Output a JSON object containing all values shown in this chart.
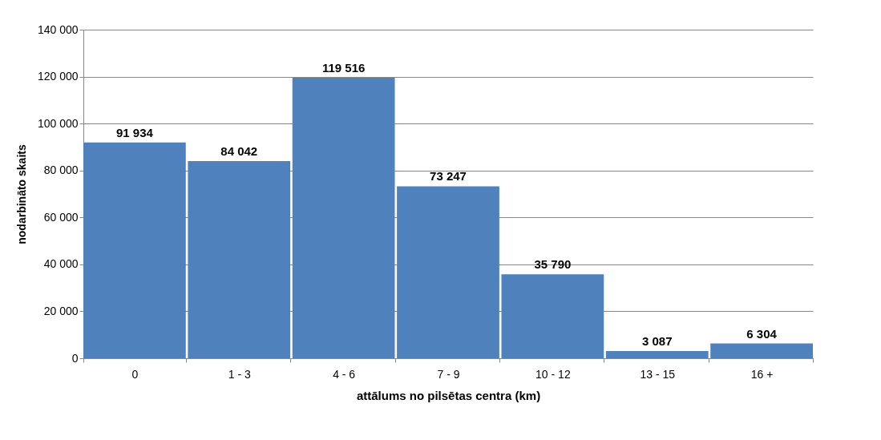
{
  "chart_data": {
    "type": "bar",
    "xlabel": "attālums no pilsētas centra (km)",
    "ylabel": "nodarbināto skaits",
    "categories": [
      "0",
      "1 - 3",
      "4 - 6",
      "7 - 9",
      "10 - 12",
      "13 - 15",
      "16 +"
    ],
    "values": [
      91934,
      84042,
      119516,
      73247,
      35790,
      3087,
      6304
    ],
    "value_labels": [
      "91 934",
      "84 042",
      "119 516",
      "73 247",
      "35 790",
      "3 087",
      "6 304"
    ],
    "color": "#4f81bd",
    "ylim": [
      0,
      140000
    ],
    "yticks": [
      0,
      {
        "value": 20000,
        "label": "20 000"
      },
      {
        "value": 40000,
        "label": "40 000"
      },
      {
        "value": 60000,
        "label": "60 000"
      },
      {
        "value": 80000,
        "label": "80 000"
      },
      {
        "value": 100000,
        "label": "100 000"
      },
      {
        "value": 120000,
        "label": "120 000"
      },
      {
        "value": 140000,
        "label": "140 000"
      }
    ],
    "grid": "y"
  }
}
